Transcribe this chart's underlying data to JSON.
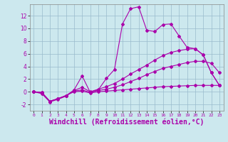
{
  "bg_color": "#cce8ee",
  "line_color": "#aa00aa",
  "grid_color": "#99bbcc",
  "xlabel": "Windchill (Refroidissement éolien,°C)",
  "xlabel_fontsize": 7,
  "xticks": [
    0,
    1,
    2,
    3,
    4,
    5,
    6,
    7,
    8,
    9,
    10,
    11,
    12,
    13,
    14,
    15,
    16,
    17,
    18,
    19,
    20,
    21,
    22,
    23
  ],
  "yticks": [
    -2,
    0,
    2,
    4,
    6,
    8,
    10,
    12
  ],
  "xlim": [
    -0.5,
    23.5
  ],
  "ylim": [
    -3.0,
    13.8
  ],
  "lines": [
    {
      "x": [
        0,
        1,
        2,
        3,
        4,
        5,
        6,
        7,
        8,
        9,
        10,
        11,
        12,
        13,
        14,
        15,
        16,
        17,
        18,
        19,
        20,
        21,
        22,
        23
      ],
      "y": [
        0.0,
        -0.3,
        -1.6,
        -1.2,
        -0.7,
        0.3,
        2.5,
        -0.1,
        0.3,
        2.1,
        3.5,
        10.7,
        13.1,
        13.4,
        9.7,
        9.5,
        10.6,
        10.7,
        8.8,
        7.0,
        6.8,
        5.8,
        3.0,
        1.0
      ]
    },
    {
      "x": [
        0,
        1,
        2,
        3,
        4,
        5,
        6,
        7,
        8,
        9,
        10,
        11,
        12,
        13,
        14,
        15,
        16,
        17,
        18,
        19,
        20,
        21,
        22,
        23
      ],
      "y": [
        0.0,
        -0.2,
        -1.5,
        -1.1,
        -0.6,
        0.2,
        0.7,
        0.0,
        0.4,
        0.8,
        1.3,
        2.0,
        2.8,
        3.5,
        4.2,
        5.0,
        5.7,
        6.2,
        6.5,
        6.7,
        6.8,
        5.8,
        3.0,
        1.0
      ]
    },
    {
      "x": [
        0,
        1,
        2,
        3,
        4,
        5,
        6,
        7,
        8,
        9,
        10,
        11,
        12,
        13,
        14,
        15,
        16,
        17,
        18,
        19,
        20,
        21,
        22,
        23
      ],
      "y": [
        0.0,
        -0.1,
        -1.5,
        -1.1,
        -0.6,
        0.1,
        0.3,
        -0.1,
        0.2,
        0.4,
        0.7,
        1.1,
        1.6,
        2.1,
        2.7,
        3.2,
        3.7,
        4.0,
        4.3,
        4.6,
        4.8,
        4.8,
        4.5,
        3.0
      ]
    },
    {
      "x": [
        0,
        1,
        2,
        3,
        4,
        5,
        6,
        7,
        8,
        9,
        10,
        11,
        12,
        13,
        14,
        15,
        16,
        17,
        18,
        19,
        20,
        21,
        22,
        23
      ],
      "y": [
        0.0,
        -0.1,
        -1.5,
        -1.1,
        -0.6,
        0.0,
        0.1,
        -0.2,
        0.0,
        0.1,
        0.2,
        0.3,
        0.4,
        0.5,
        0.6,
        0.7,
        0.8,
        0.85,
        0.9,
        0.95,
        1.0,
        1.0,
        1.0,
        1.0
      ]
    }
  ],
  "marker": "D",
  "markersize": 2.0,
  "linewidth": 0.8
}
